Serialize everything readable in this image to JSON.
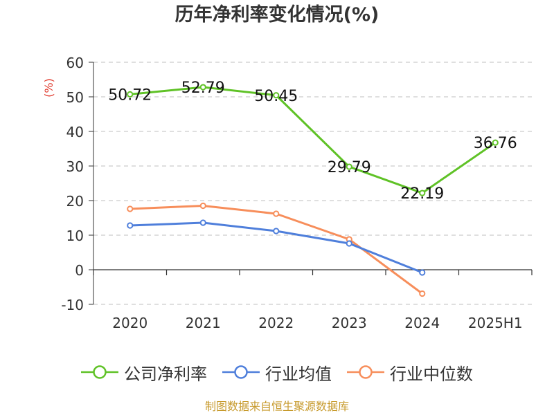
{
  "chart_data": {
    "type": "line",
    "title": "历年净利率变化情况(%)",
    "ylabel": "(%)",
    "categories": [
      "2020",
      "2021",
      "2022",
      "2023",
      "2024",
      "2025H1"
    ],
    "ylim": [
      -10,
      60
    ],
    "yticks": [
      "60",
      "50",
      "40",
      "30",
      "20",
      "10",
      "0",
      "-10"
    ],
    "grid": true,
    "legend_position": "bottom",
    "series": [
      {
        "name": "公司净利率",
        "color": "#5fc226",
        "show_labels": true,
        "values": [
          50.72,
          52.79,
          50.45,
          29.79,
          22.19,
          36.76
        ],
        "labels": [
          "50.72",
          "52.79",
          "50.45",
          "29.79",
          "22.19",
          "36.76"
        ]
      },
      {
        "name": "行业均值",
        "color": "#4f7fdb",
        "show_labels": false,
        "values": [
          12.8,
          13.6,
          11.2,
          7.6,
          -0.8,
          null
        ]
      },
      {
        "name": "行业中位数",
        "color": "#f78e5b",
        "show_labels": false,
        "values": [
          17.6,
          18.5,
          16.2,
          8.8,
          -6.9,
          null
        ]
      }
    ]
  },
  "source_note": "制图数据来自恒生聚源数据库"
}
